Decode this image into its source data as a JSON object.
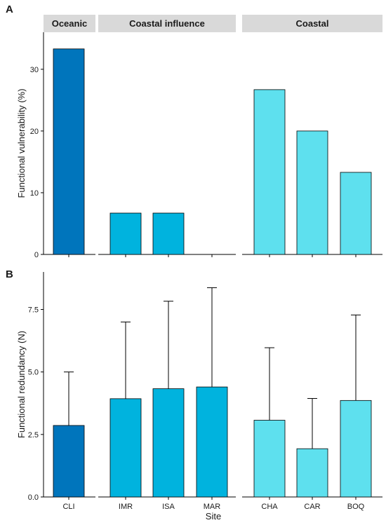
{
  "chart_data": [
    {
      "type": "bar",
      "panel_label": "A",
      "ylabel": "Functional vulnerability (%)",
      "xlabel": "",
      "ylim": [
        0,
        36
      ],
      "yticks": [
        0,
        10,
        20,
        30
      ],
      "ytick_labels": [
        "0",
        "10",
        "20",
        "30"
      ],
      "facets": [
        {
          "label": "Oceanic",
          "categories": [
            "CLI"
          ],
          "values": [
            33.3
          ]
        },
        {
          "label": "Coastal influence",
          "categories": [
            "IMR",
            "ISA",
            "MAR"
          ],
          "values": [
            6.7,
            6.7,
            0
          ]
        },
        {
          "label": "Coastal",
          "categories": [
            "CHA",
            "CAR",
            "BOQ"
          ],
          "values": [
            26.7,
            20.0,
            13.3
          ]
        }
      ],
      "show_x_tick_labels": false
    },
    {
      "type": "bar",
      "panel_label": "B",
      "ylabel": "Functional redundancy (N)",
      "xlabel": "Site",
      "ylim": [
        0,
        9
      ],
      "yticks": [
        0,
        2.5,
        5,
        7.5
      ],
      "ytick_labels": [
        "0.0",
        "2.5",
        "5.0",
        "7.5"
      ],
      "facets": [
        {
          "label": "",
          "categories": [
            "CLI"
          ],
          "values": [
            2.86
          ],
          "error_upper": [
            5.0
          ]
        },
        {
          "label": "",
          "categories": [
            "IMR",
            "ISA",
            "MAR"
          ],
          "values": [
            3.93,
            4.33,
            4.4
          ],
          "error_upper": [
            7.0,
            7.83,
            8.37
          ]
        },
        {
          "label": "",
          "categories": [
            "CHA",
            "CAR",
            "BOQ"
          ],
          "values": [
            3.07,
            1.93,
            3.86
          ],
          "error_upper": [
            5.97,
            3.94,
            7.28
          ]
        }
      ],
      "show_x_tick_labels": true
    }
  ],
  "colors": {
    "Oceanic": "#0075bc",
    "Coastal influence": "#00b3de",
    "Coastal": "#5ee0ee",
    "strip_background": "#d9d9d9"
  }
}
